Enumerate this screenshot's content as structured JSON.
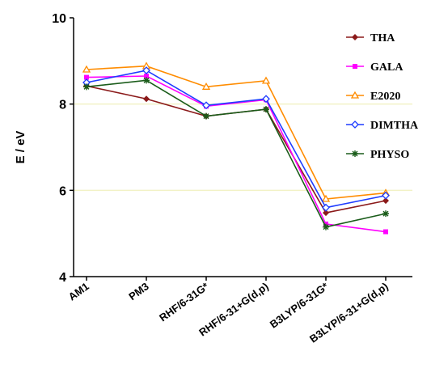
{
  "chart_data": {
    "type": "line",
    "title": "",
    "xlabel": "",
    "ylabel": "E / eV",
    "ylim": [
      4,
      10
    ],
    "yticks": [
      "4",
      "6",
      "8",
      "10"
    ],
    "gridlines": [
      6,
      8
    ],
    "grid_color": "#f2f2c6",
    "legend_position": "right",
    "categories": [
      "AM1",
      "PM3",
      "RHF/6-31G*",
      "RHF/6-31+G(d,p)",
      "B3LYP/6-31G*",
      "B3LYP/6-31+G(d,p)"
    ],
    "series": [
      {
        "name": "THA",
        "color": "#8b1a1a",
        "marker": "diamond",
        "values": [
          8.42,
          8.12,
          7.72,
          7.88,
          5.48,
          5.76
        ]
      },
      {
        "name": "GALA",
        "color": "#ff00ff",
        "marker": "square",
        "values": [
          8.62,
          8.65,
          7.95,
          8.1,
          5.22,
          5.04
        ]
      },
      {
        "name": "E2020",
        "color": "#ff8c00",
        "marker": "triangle",
        "values": [
          8.8,
          8.88,
          8.4,
          8.54,
          5.8,
          5.94
        ]
      },
      {
        "name": "DIMTHA",
        "color": "#1e3cff",
        "marker": "diamond",
        "values": [
          8.5,
          8.78,
          7.97,
          8.12,
          5.6,
          5.88
        ]
      },
      {
        "name": "PHYSO",
        "color": "#1a5c1a",
        "marker": "star",
        "values": [
          8.4,
          8.55,
          7.72,
          7.88,
          5.15,
          5.46
        ]
      }
    ]
  }
}
